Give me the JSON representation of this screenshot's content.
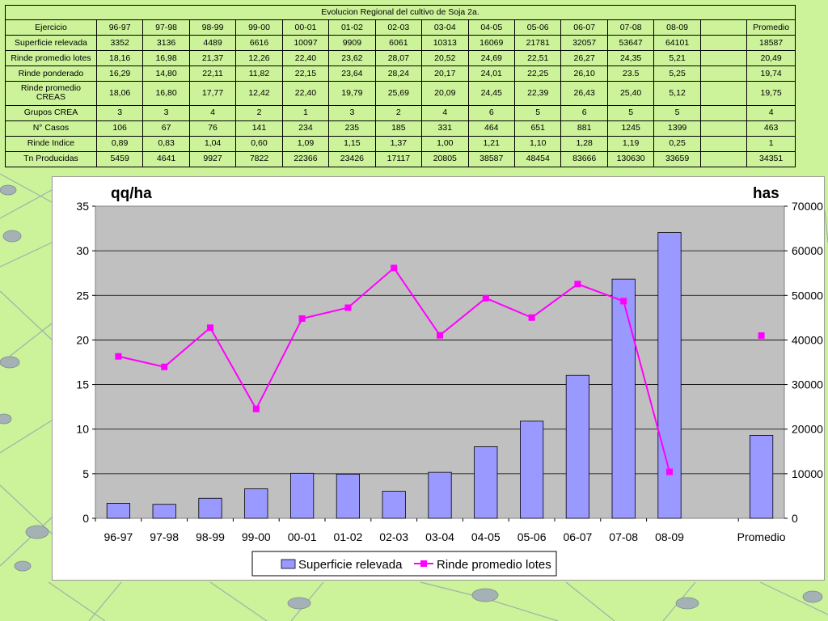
{
  "table": {
    "title": "Evolucion Regional del cultivo de Soja 2a.",
    "header_label": "Ejercicio",
    "columns": [
      "96-97",
      "97-98",
      "98-99",
      "99-00",
      "00-01",
      "01-02",
      "02-03",
      "03-04",
      "04-05",
      "05-06",
      "06-07",
      "07-08",
      "08-09"
    ],
    "average_label": "Promedio",
    "rows": [
      {
        "label": "Superficie relevada",
        "values": [
          "3352",
          "3136",
          "4489",
          "6616",
          "10097",
          "9909",
          "6061",
          "10313",
          "16069",
          "21781",
          "32057",
          "53647",
          "64101"
        ],
        "average": "18587"
      },
      {
        "label": "Rinde promedio lotes",
        "values": [
          "18,16",
          "16,98",
          "21,37",
          "12,26",
          "22,40",
          "23,62",
          "28,07",
          "20,52",
          "24,69",
          "22,51",
          "26,27",
          "24,35",
          "5,21"
        ],
        "average": "20,49"
      },
      {
        "label": "Rinde ponderado",
        "values": [
          "16,29",
          "14,80",
          "22,11",
          "11,82",
          "22,15",
          "23,64",
          "28,24",
          "20,17",
          "24,01",
          "22,25",
          "26,10",
          "23.5",
          "5,25"
        ],
        "average": "19,74"
      },
      {
        "label": "Rinde promedio CREAS",
        "values": [
          "18,06",
          "16,80",
          "17,77",
          "12,42",
          "22,40",
          "19,79",
          "25,69",
          "20,09",
          "24,45",
          "22,39",
          "26,43",
          "25,40",
          "5,12"
        ],
        "average": "19,75"
      },
      {
        "label": "Grupos CREA",
        "values": [
          "3",
          "3",
          "4",
          "2",
          "1",
          "3",
          "2",
          "4",
          "6",
          "5",
          "6",
          "5",
          "5"
        ],
        "average": "4"
      },
      {
        "label": "N° Casos",
        "values": [
          "106",
          "67",
          "76",
          "141",
          "234",
          "235",
          "185",
          "331",
          "464",
          "651",
          "881",
          "1245",
          "1399"
        ],
        "average": "463"
      },
      {
        "label": "Rinde Indice",
        "values": [
          "0,89",
          "0,83",
          "1,04",
          "0,60",
          "1,09",
          "1,15",
          "1,37",
          "1,00",
          "1,21",
          "1,10",
          "1,28",
          "1,19",
          "0,25"
        ],
        "average": "1"
      },
      {
        "label": "Tn Producidas",
        "values": [
          "5459",
          "4641",
          "9927",
          "7822",
          "22366",
          "23426",
          "17117",
          "20805",
          "38587",
          "48454",
          "83666",
          "130630",
          "33659"
        ],
        "average": "34351"
      }
    ]
  },
  "chart_data": {
    "type": "bar",
    "categories": [
      "96-97",
      "97-98",
      "98-99",
      "99-00",
      "00-01",
      "01-02",
      "02-03",
      "03-04",
      "04-05",
      "05-06",
      "06-07",
      "07-08",
      "08-09",
      "",
      "Promedio"
    ],
    "series": [
      {
        "name": "Superficie relevada",
        "type": "bar",
        "axis": "right",
        "values": [
          3352,
          3136,
          4489,
          6616,
          10097,
          9909,
          6061,
          10313,
          16069,
          21781,
          32057,
          53647,
          64101,
          null,
          18587
        ],
        "color": "#9999ff"
      },
      {
        "name": "Rinde promedio lotes",
        "type": "line",
        "axis": "left",
        "values": [
          18.16,
          16.98,
          21.37,
          12.26,
          22.4,
          23.62,
          28.07,
          20.52,
          24.69,
          22.51,
          26.27,
          24.35,
          5.21,
          null,
          20.49
        ],
        "color": "#ff00ff"
      }
    ],
    "left_axis_label": "qq/ha",
    "right_axis_label": "has",
    "ylim_left": [
      0,
      35
    ],
    "ylim_right": [
      0,
      70000
    ],
    "left_ticks": [
      "0",
      "5",
      "10",
      "15",
      "20",
      "25",
      "30",
      "35"
    ],
    "right_ticks": [
      "0",
      "10000",
      "20000",
      "30000",
      "40000",
      "50000",
      "60000",
      "70000"
    ],
    "grid": true,
    "legend_position": "bottom",
    "plot_background": "#c0c0c0"
  }
}
